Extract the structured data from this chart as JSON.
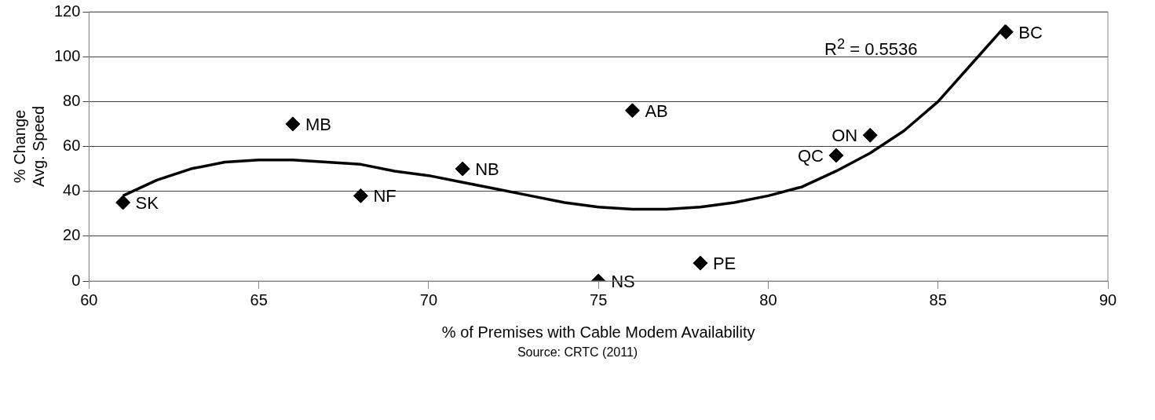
{
  "chart_data": {
    "type": "scatter",
    "xlabel": "% of Premises with Cable Modem Availability",
    "ylabel": "% Change Avg. Speed",
    "xlim": [
      60,
      90
    ],
    "xticks": [
      60,
      65,
      70,
      75,
      80,
      85,
      90
    ],
    "ylim": [
      0,
      120
    ],
    "yticks": [
      0,
      20,
      40,
      60,
      80,
      100,
      120
    ],
    "grid": "y",
    "legend": false,
    "marker": "diamond",
    "series": [
      {
        "color": "#000000",
        "x": [
          61,
          66,
          68,
          71,
          75,
          76,
          78,
          82,
          83,
          87
        ],
        "values": [
          35,
          70,
          38,
          50,
          0,
          76,
          8,
          56,
          65,
          111
        ]
      },
      {
        "type": "line",
        "color": "#000000",
        "marker": "none",
        "line_style": "solid",
        "x": [
          61,
          62,
          63,
          64,
          65,
          66,
          67,
          68,
          69,
          70,
          71,
          72,
          73,
          74,
          75,
          76,
          77,
          78,
          79,
          80,
          81,
          82,
          83,
          84,
          85,
          86,
          87
        ],
        "values": [
          38,
          45,
          50,
          53,
          54,
          54,
          53,
          52,
          49,
          47,
          44,
          41,
          38,
          35,
          33,
          32,
          32,
          33,
          35,
          38,
          42,
          49,
          57,
          67,
          80,
          97,
          114
        ]
      }
    ],
    "annotations": [
      {
        "text": "SK",
        "x": 61,
        "y": 35
      },
      {
        "text": "MB",
        "x": 66,
        "y": 70
      },
      {
        "text": "NF",
        "x": 68,
        "y": 38
      },
      {
        "text": "NB",
        "x": 71,
        "y": 50
      },
      {
        "text": "NS",
        "x": 75,
        "y": 0
      },
      {
        "text": "AB",
        "x": 76,
        "y": 76
      },
      {
        "text": "PE",
        "x": 78,
        "y": 8
      },
      {
        "text": "QC",
        "x": 82,
        "y": 56
      },
      {
        "text": "ON",
        "x": 83,
        "y": 65
      },
      {
        "text": "BC",
        "x": 87,
        "y": 111
      },
      "R$^{2}$ = 0.5536",
      "Source: CRTC (2011)"
    ]
  }
}
